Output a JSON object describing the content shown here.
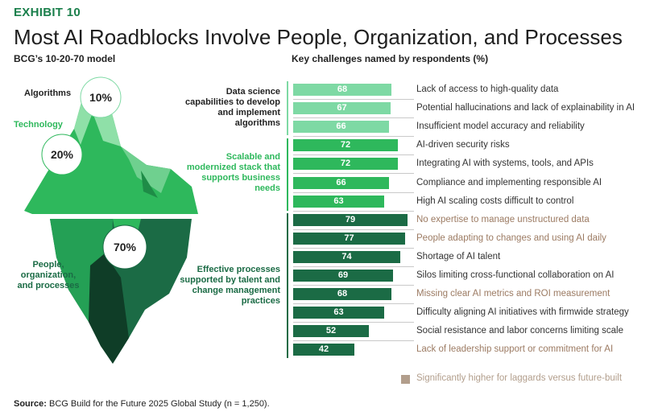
{
  "header": {
    "exhibit": "EXHIBIT 10",
    "title": "Most AI Roadblocks Involve People, Organization, and Processes",
    "model_subtitle": "BCG’s 10-20-70 model",
    "chart_subtitle": "Key challenges named by respondents (%)"
  },
  "iceberg": {
    "algorithms_label": "Algorithms",
    "algorithms_pct": "10%",
    "technology_label": "Technology",
    "technology_pct": "20%",
    "people_label": "People,\norganization,\nand processes",
    "people_pct": "70%"
  },
  "groups": [
    {
      "label": "Data science capabilities to develop and implement algorithms",
      "color": "#7ed9a4"
    },
    {
      "label": "Scalable and modernized stack that supports business needs",
      "color": "#2eb85c"
    },
    {
      "label": "Effective processes supported by talent and change management practices",
      "color": "#1b6b45"
    }
  ],
  "colors": {
    "group1": "#7ed9a4",
    "group2": "#2eb85c",
    "group3": "#1b6b45",
    "laggard_text": "#9c7b63",
    "legend_swatch": "#b29e8c",
    "group2_label": "#2eb85c",
    "group3_label": "#1b6b45"
  },
  "chart_data": {
    "type": "bar",
    "title": "Key challenges named by respondents (%)",
    "orientation": "horizontal",
    "xlim": [
      0,
      100
    ],
    "categories": [
      "Lack of access to high-quality data",
      "Potential hallucinations and lack of explainability in AI",
      "Insufficient model accuracy and reliability",
      "AI-driven security risks",
      "Integrating AI with systems, tools, and APIs",
      "Compliance and implementing responsible AI",
      "High AI scaling costs difficult to control",
      "No expertise to manage unstructured data",
      "People adapting to changes and using AI daily",
      "Shortage of AI talent",
      "Silos limiting cross-functional collaboration on AI",
      "Missing clear AI metrics and ROI measurement",
      "Difficulty aligning AI initiatives with firmwide strategy",
      "Social resistance and labor concerns limiting scale",
      "Lack of leadership support or commitment for AI"
    ],
    "values": [
      68,
      67,
      66,
      72,
      72,
      66,
      63,
      79,
      77,
      74,
      69,
      68,
      63,
      52,
      42
    ],
    "group_index": [
      0,
      0,
      0,
      1,
      1,
      1,
      1,
      2,
      2,
      2,
      2,
      2,
      2,
      2,
      2
    ],
    "laggard_highlight": [
      false,
      false,
      false,
      false,
      false,
      false,
      false,
      true,
      true,
      false,
      false,
      true,
      false,
      false,
      true
    ],
    "legend": "Significantly higher for laggards versus future-built"
  },
  "footer": {
    "source_label": "Source:",
    "source_text": " BCG Build for the Future 2025 Global Study (n = 1,250)."
  }
}
